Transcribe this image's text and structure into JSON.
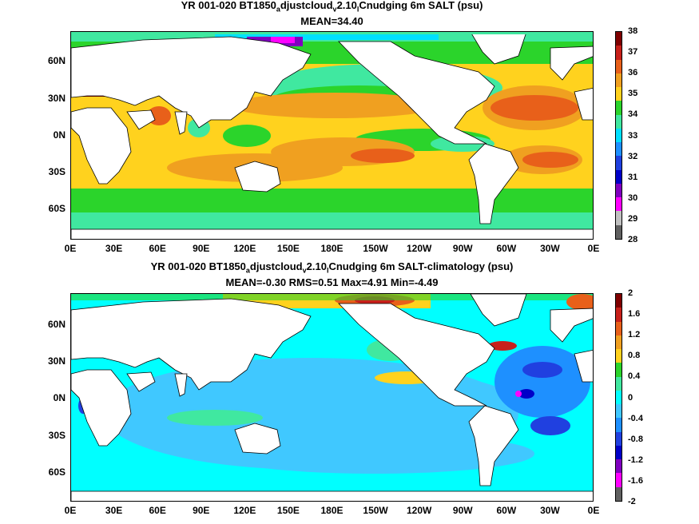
{
  "panels": [
    {
      "title_parts": [
        "YR 001-020 BT1850",
        "a",
        "djustcloud",
        "v",
        "2.10",
        "l",
        "Cnudging 6m SALT (psu)"
      ],
      "subtitle": "MEAN=34.40",
      "colorbar_labels": [
        "38",
        "37",
        "36",
        "35",
        "34",
        "33",
        "32",
        "31",
        "30",
        "29",
        "28"
      ],
      "colorbar_colors": [
        "#800000",
        "#c8201a",
        "#e8601a",
        "#f0a020",
        "#ffd21e",
        "#2bd42b",
        "#40e8a0",
        "#00e0ff",
        "#1e90ff",
        "#2040e0",
        "#0000c8",
        "#8000c0",
        "#ff00ff",
        "#c0c0c0",
        "#606060"
      ]
    },
    {
      "title_parts": [
        "YR 001-020 BT1850",
        "a",
        "djustcloud",
        "v",
        "2.10",
        "l",
        "Cnudging 6m SALT-climatology (psu)"
      ],
      "subtitle": "MEAN=-0.30   RMS=0.51   Max=4.91   Min=-4.49",
      "colorbar_labels": [
        "2",
        "1.6",
        "1.2",
        "0.8",
        "0.4",
        "0",
        "-0.4",
        "-0.8",
        "-1.2",
        "-1.6",
        "-2"
      ],
      "colorbar_colors": [
        "#800000",
        "#c8201a",
        "#e8601a",
        "#f0a020",
        "#ffd21e",
        "#2bd42b",
        "#40e8a0",
        "#00ffff",
        "#40c8ff",
        "#1e90ff",
        "#2040e0",
        "#0000c8",
        "#8000c0",
        "#ff00ff",
        "#606060"
      ]
    }
  ],
  "y_ticks": [
    "60N",
    "30N",
    "0N",
    "30S",
    "60S"
  ],
  "x_ticks": [
    "0E",
    "30E",
    "60E",
    "90E",
    "120E",
    "150E",
    "180E",
    "150W",
    "120W",
    "90W",
    "60W",
    "30W",
    "0E"
  ]
}
